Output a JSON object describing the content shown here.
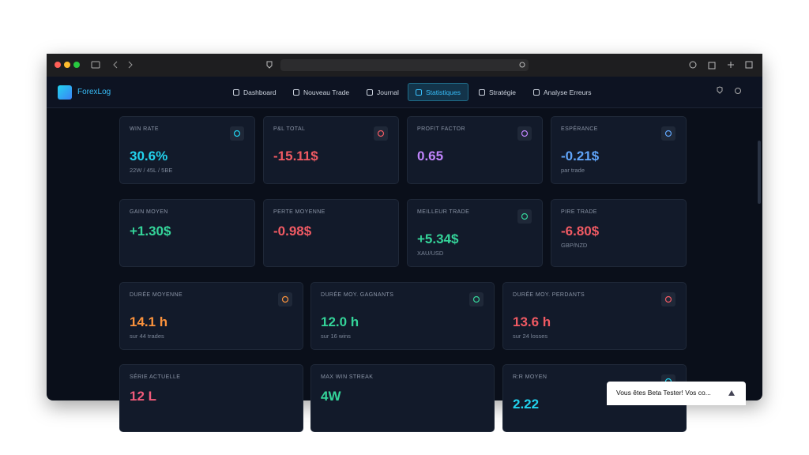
{
  "app": {
    "brand": "ForexLog",
    "nav": [
      "Dashboard",
      "Nouveau Trade",
      "Journal",
      "Statistiques",
      "Stratégie",
      "Analyse Erreurs"
    ],
    "active_nav": 3
  },
  "cards": [
    {
      "label": "WIN RATE",
      "value": "30.6%",
      "sub": "22W / 45L / 5BE",
      "color": "#22d3ee"
    },
    {
      "label": "P&L TOTAL",
      "value": "-15.11$",
      "color": "#f05a63"
    },
    {
      "label": "PROFIT FACTOR",
      "value": "0.65",
      "color": "#c084fc"
    },
    {
      "label": "ESPÉRANCE",
      "value": "-0.21$",
      "sub": "par trade",
      "color": "#60a5fa"
    },
    {
      "label": "GAIN MOYEN",
      "value": "+1.30$",
      "color": "#34d399"
    },
    {
      "label": "PERTE MOYENNE",
      "value": "-0.98$",
      "color": "#f05a63"
    },
    {
      "label": "MEILLEUR TRADE",
      "value": "+5.34$",
      "sub": "XAU/USD",
      "color": "#34d399"
    },
    {
      "label": "PIRE TRADE",
      "value": "-6.80$",
      "sub": "GBP/NZD",
      "color": "#f05a63"
    },
    {
      "label": "DURÉE MOYENNE",
      "value": "14.1 h",
      "sub": "sur 44 trades",
      "color": "#fb923c"
    },
    {
      "label": "DURÉE MOY. GAGNANTS",
      "value": "12.0 h",
      "sub": "sur 16 wins",
      "color": "#34d399"
    },
    {
      "label": "DURÉE MOY. PERDANTS",
      "value": "13.6 h",
      "sub": "sur 24 losses",
      "color": "#f05a63"
    },
    {
      "label": "SÉRIE ACTUELLE",
      "value": "12 L",
      "color": "#f05a7a"
    },
    {
      "label": "MAX WIN STREAK",
      "value": "4W",
      "color": "#34d399"
    },
    {
      "label": "R:R MOYEN",
      "value": "2.22",
      "color": "#22d3ee"
    }
  ],
  "toast": "Vous êtes Beta Tester! Vos co..."
}
